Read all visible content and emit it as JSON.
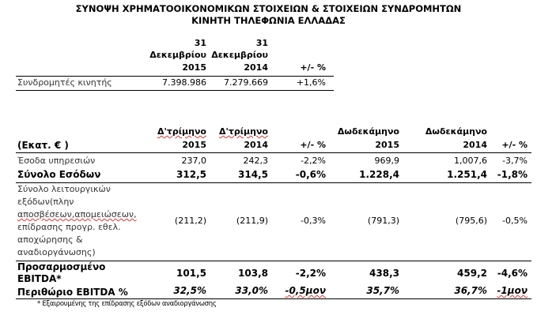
{
  "title": {
    "line1": "ΣΥΝΟΨΗ ΧΡΗΜΑΤΟΟΙΚΟΝΟΜΙΚΩΝ ΣΤΟΙΧΕΙΩΝ & ΣΤΟΙΧΕΙΩΝ ΣΥΝΔΡΟΜΗΤΩΝ",
    "line2": "ΚΙΝΗΤΗ ΤΗΛΕΦΩΝΙΑ ΕΛΛΑΔΑΣ"
  },
  "subscribers": {
    "headers": [
      {
        "l1": "31",
        "l2": "Δεκεμβρίου",
        "l3": "2015"
      },
      {
        "l1": "31",
        "l2": "Δεκεμβρίου",
        "l3": "2014"
      },
      {
        "l3": "+/- %"
      }
    ],
    "row": {
      "label": "Συνδρομητές κινητής",
      "values": [
        "7.398.986",
        "7.279.669",
        "+1,6%"
      ]
    }
  },
  "financials": {
    "unit_label": "(Εκατ. € )",
    "headers": [
      {
        "l1": "Δ'τρίμηνο",
        "l2": "2015"
      },
      {
        "l1": "Δ'τρίμηνο",
        "l2": "2014"
      },
      {
        "l2": "+/- %"
      },
      {
        "l1": "Δωδεκάμηνο",
        "l2": "2015"
      },
      {
        "l1": "Δωδεκάμηνο",
        "l2": "2014"
      },
      {
        "l2": "+/- %"
      }
    ],
    "rows": [
      {
        "label": "Έσοδα υπηρεσιών",
        "values": [
          "237,0",
          "242,3",
          "-2,2%",
          "969,9",
          "1,007,6",
          "-3,7%"
        ]
      },
      {
        "label": "Σύνολο Εσόδων",
        "values": [
          "312,5",
          "314,5",
          "-0,6%",
          "1.228,4",
          "1.251,4",
          "-1,8%"
        ]
      },
      {
        "label_lines": [
          "Σύνολο λειτουργικών",
          "εξόδων(πλην",
          "αποσβέσεων,απομειώσεων,",
          "επίδρασης προγρ. εθελ.",
          "αποχώρησης &",
          "αναδιοργάνωσης)"
        ],
        "values": [
          "(211,2)",
          "(211,9)",
          "-0,3%",
          "(791,3)",
          "(795,6)",
          "-0,5%"
        ]
      },
      {
        "label_lines": [
          "Προσαρμοσμένο",
          "EBITDA*"
        ],
        "values": [
          "101,5",
          "103,8",
          "-2,2%",
          "438,3",
          "459,2",
          "-4,6%"
        ]
      },
      {
        "label": "Περιθώριο EBITDA %",
        "values": [
          "32,5%",
          "33,0%",
          "-0,5μον",
          "35,7%",
          "36,7%",
          "-1μον"
        ]
      }
    ],
    "footnote": "* Εξαιρουμένης της επίδρασης εξόδων αναδιοργάνωσης"
  }
}
